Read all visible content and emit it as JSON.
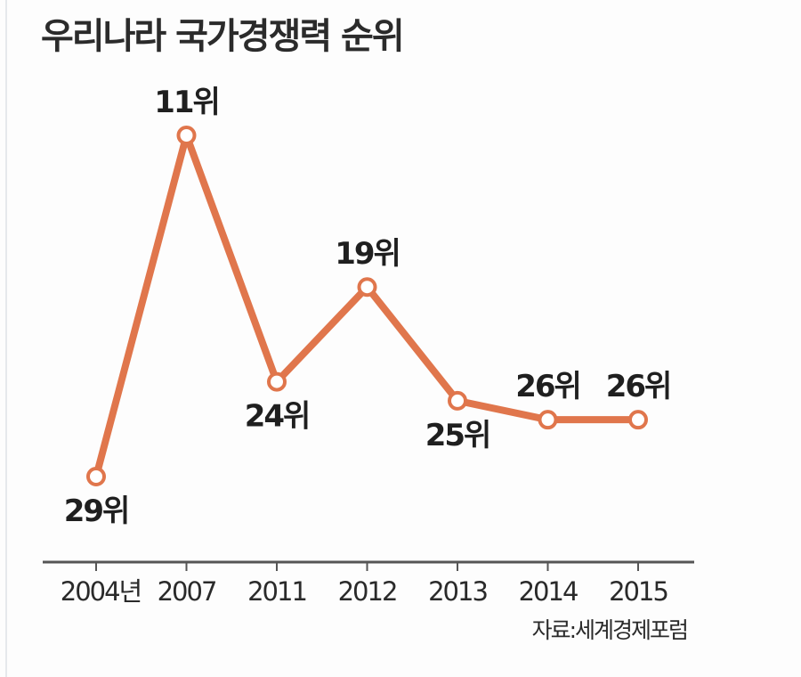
{
  "title": "우리나라 국가경쟁력 순위",
  "source": "자료:세계경제포럼",
  "colors": {
    "line": "#e0764c",
    "marker_fill": "#ffffff",
    "axis": "#555555",
    "text": "#1f1f1f"
  },
  "chart_data": {
    "type": "line",
    "title": "우리나라 국가경쟁력 순위",
    "xlabel": "",
    "ylabel": "",
    "categories": [
      "2004년",
      "2007",
      "2011",
      "2012",
      "2013",
      "2014",
      "2015"
    ],
    "values": [
      29,
      11,
      24,
      19,
      25,
      26,
      26
    ],
    "data_labels": [
      "29위",
      "11위",
      "24위",
      "19위",
      "25위",
      "26위",
      "26위"
    ],
    "data_label_positions": [
      "below",
      "above",
      "below",
      "above",
      "below",
      "above",
      "above"
    ],
    "y_inverted": true,
    "grid": false,
    "legend": "none"
  }
}
